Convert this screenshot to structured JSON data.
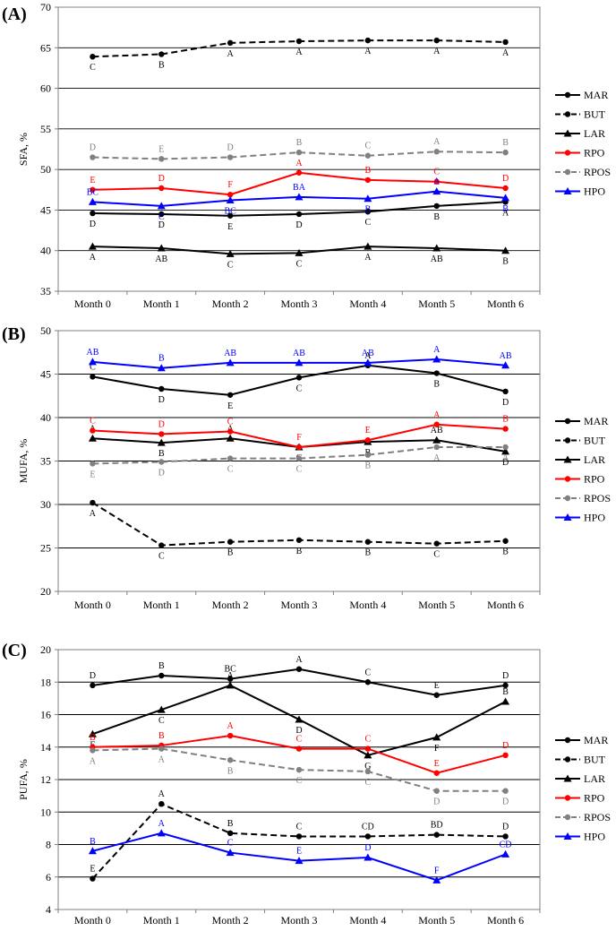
{
  "chart_data": [
    {
      "type": "line",
      "panel": "(A)",
      "ylabel": "SFA, %",
      "ylim": [
        35,
        70
      ],
      "yticks": [
        35,
        40,
        45,
        50,
        55,
        60,
        65,
        70
      ],
      "gridlines": [
        40,
        45,
        50,
        55,
        60,
        65
      ],
      "x": [
        "Month 0",
        "Month 1",
        "Month 2",
        "Month 3",
        "Month 4",
        "Month 5",
        "Month 6"
      ],
      "series": [
        {
          "name": "MAR",
          "color": "#000000",
          "dash": "solid",
          "marker": "circle",
          "values": [
            44.6,
            44.5,
            44.3,
            44.5,
            44.8,
            45.5,
            46.0
          ],
          "letters": [
            "D",
            "D",
            "E",
            "D",
            "C",
            "B",
            "A"
          ],
          "letter_pos": "below"
        },
        {
          "name": "BUT",
          "color": "#000000",
          "dash": "dashed",
          "marker": "circle",
          "values": [
            63.9,
            64.2,
            65.6,
            65.8,
            65.9,
            65.9,
            65.7
          ],
          "letters": [
            "C",
            "B",
            "A",
            "A",
            "A",
            "A",
            "A"
          ],
          "letter_pos": "below"
        },
        {
          "name": "LAR",
          "color": "#000000",
          "dash": "solid",
          "marker": "triangle",
          "values": [
            40.5,
            40.3,
            39.6,
            39.7,
            40.5,
            40.3,
            40.0
          ],
          "letters": [
            "A",
            "AB",
            "C",
            "C",
            "A",
            "AB",
            "B"
          ],
          "letter_pos": "below"
        },
        {
          "name": "RPO",
          "color": "#ff0000",
          "dash": "solid",
          "marker": "circle",
          "values": [
            47.5,
            47.7,
            46.9,
            49.6,
            48.7,
            48.5,
            47.7
          ],
          "letters": [
            "E",
            "D",
            "F",
            "A",
            "B",
            "C",
            "D"
          ],
          "letter_pos": "above"
        },
        {
          "name": "RPOS",
          "color": "#808080",
          "dash": "dashed",
          "marker": "circle",
          "values": [
            51.5,
            51.3,
            51.5,
            52.1,
            51.7,
            52.2,
            52.1
          ],
          "letters": [
            "D",
            "E",
            "D",
            "B",
            "C",
            "A",
            "B"
          ],
          "letter_pos": "above"
        },
        {
          "name": "HPO",
          "color": "#0000ff",
          "dash": "solid",
          "marker": "triangle",
          "values": [
            46.0,
            45.5,
            46.2,
            46.6,
            46.4,
            47.3,
            46.5
          ],
          "letters": [
            "BC",
            "C",
            "BC",
            "BA",
            "B",
            "A",
            "B"
          ],
          "letter_pos": "mixed"
        }
      ]
    },
    {
      "type": "line",
      "panel": "(B)",
      "ylabel": "MUFA, %",
      "ylim": [
        20,
        50
      ],
      "yticks": [
        20,
        25,
        30,
        35,
        40,
        45,
        50
      ],
      "gridlines": [
        25,
        30,
        35,
        40,
        45
      ],
      "x": [
        "Month 0",
        "Month 1",
        "Month 2",
        "Month 3",
        "Month 4",
        "Month 5",
        "Month 6"
      ],
      "series": [
        {
          "name": "MAR",
          "color": "#000000",
          "dash": "solid",
          "marker": "circle",
          "values": [
            44.7,
            43.3,
            42.6,
            44.6,
            46.0,
            45.1,
            43.0
          ],
          "letters": [
            "C",
            "D",
            "E",
            "C",
            "A",
            "B",
            "D"
          ],
          "letter_pos": "mixed"
        },
        {
          "name": "BUT",
          "color": "#000000",
          "dash": "dashed",
          "marker": "circle",
          "values": [
            30.2,
            25.3,
            25.7,
            25.9,
            25.7,
            25.5,
            25.8
          ],
          "letters": [
            "A",
            "C",
            "B",
            "B",
            "B",
            "C",
            "B"
          ],
          "letter_pos": "below"
        },
        {
          "name": "LAR",
          "color": "#000000",
          "dash": "solid",
          "marker": "triangle",
          "values": [
            37.6,
            37.1,
            37.6,
            36.6,
            37.2,
            37.4,
            36.1
          ],
          "letters": [
            "A",
            "B",
            "A",
            "C",
            "B",
            "AB",
            "D"
          ],
          "letter_pos": "mixed"
        },
        {
          "name": "RPO",
          "color": "#ff0000",
          "dash": "solid",
          "marker": "circle",
          "values": [
            38.5,
            38.1,
            38.4,
            36.6,
            37.4,
            39.2,
            38.7
          ],
          "letters": [
            "C",
            "D",
            "C",
            "F",
            "E",
            "A",
            "B"
          ],
          "letter_pos": "above"
        },
        {
          "name": "RPOS",
          "color": "#808080",
          "dash": "dashed",
          "marker": "circle",
          "values": [
            34.7,
            34.9,
            35.3,
            35.3,
            35.7,
            36.6,
            36.6
          ],
          "letters": [
            "E",
            "D",
            "C",
            "C",
            "B",
            "A",
            "A"
          ],
          "letter_pos": "below"
        },
        {
          "name": "HPO",
          "color": "#0000ff",
          "dash": "solid",
          "marker": "triangle",
          "values": [
            46.4,
            45.7,
            46.3,
            46.3,
            46.3,
            46.7,
            46.0
          ],
          "letters": [
            "AB",
            "B",
            "AB",
            "AB",
            "AB",
            "A",
            "AB"
          ],
          "letter_pos": "above"
        }
      ]
    },
    {
      "type": "line",
      "panel": "(C)",
      "ylabel": "PUFA, %",
      "ylim": [
        4,
        20
      ],
      "yticks": [
        4,
        6,
        8,
        10,
        12,
        14,
        16,
        18,
        20
      ],
      "gridlines": [
        6,
        8,
        10,
        12,
        14,
        16,
        18
      ],
      "x": [
        "Month 0",
        "Month 1",
        "Month 2",
        "Month 3",
        "Month 4",
        "Month 5",
        "Month 6"
      ],
      "series": [
        {
          "name": "MAR",
          "color": "#000000",
          "dash": "solid",
          "marker": "circle",
          "values": [
            17.8,
            18.4,
            18.2,
            18.8,
            18.0,
            17.2,
            17.8
          ],
          "letters": [
            "D",
            "B",
            "BC",
            "A",
            "C",
            "E",
            "D"
          ],
          "letter_pos": "above"
        },
        {
          "name": "BUT",
          "color": "#000000",
          "dash": "dashed",
          "marker": "circle",
          "values": [
            5.9,
            10.5,
            8.7,
            8.5,
            8.5,
            8.6,
            8.5
          ],
          "letters": [
            "E",
            "A",
            "B",
            "C",
            "CD",
            "BD",
            "D"
          ],
          "letter_pos": "above"
        },
        {
          "name": "LAR",
          "color": "#000000",
          "dash": "solid",
          "marker": "triangle",
          "values": [
            14.8,
            16.3,
            17.8,
            15.7,
            13.5,
            14.6,
            16.8
          ],
          "letters": [
            "E",
            "C",
            "A",
            "D",
            "G",
            "F",
            "B"
          ],
          "letter_pos": "mixed"
        },
        {
          "name": "RPO",
          "color": "#ff0000",
          "dash": "solid",
          "marker": "circle",
          "values": [
            14.0,
            14.1,
            14.7,
            13.9,
            13.9,
            12.4,
            13.5
          ],
          "letters": [
            "B",
            "B",
            "A",
            "C",
            "C",
            "E",
            "D"
          ],
          "letter_pos": "above"
        },
        {
          "name": "RPOS",
          "color": "#808080",
          "dash": "dashed",
          "marker": "circle",
          "values": [
            13.8,
            13.9,
            13.2,
            12.6,
            12.5,
            11.3,
            11.3
          ],
          "letters": [
            "A",
            "A",
            "B",
            "C",
            "C",
            "D",
            "D"
          ],
          "letter_pos": "below"
        },
        {
          "name": "HPO",
          "color": "#0000ff",
          "dash": "solid",
          "marker": "triangle",
          "values": [
            7.6,
            8.7,
            7.5,
            7.0,
            7.2,
            5.8,
            7.4
          ],
          "letters": [
            "B",
            "A",
            "C",
            "E",
            "D",
            "F",
            "CD"
          ],
          "letter_pos": "above"
        }
      ]
    }
  ]
}
